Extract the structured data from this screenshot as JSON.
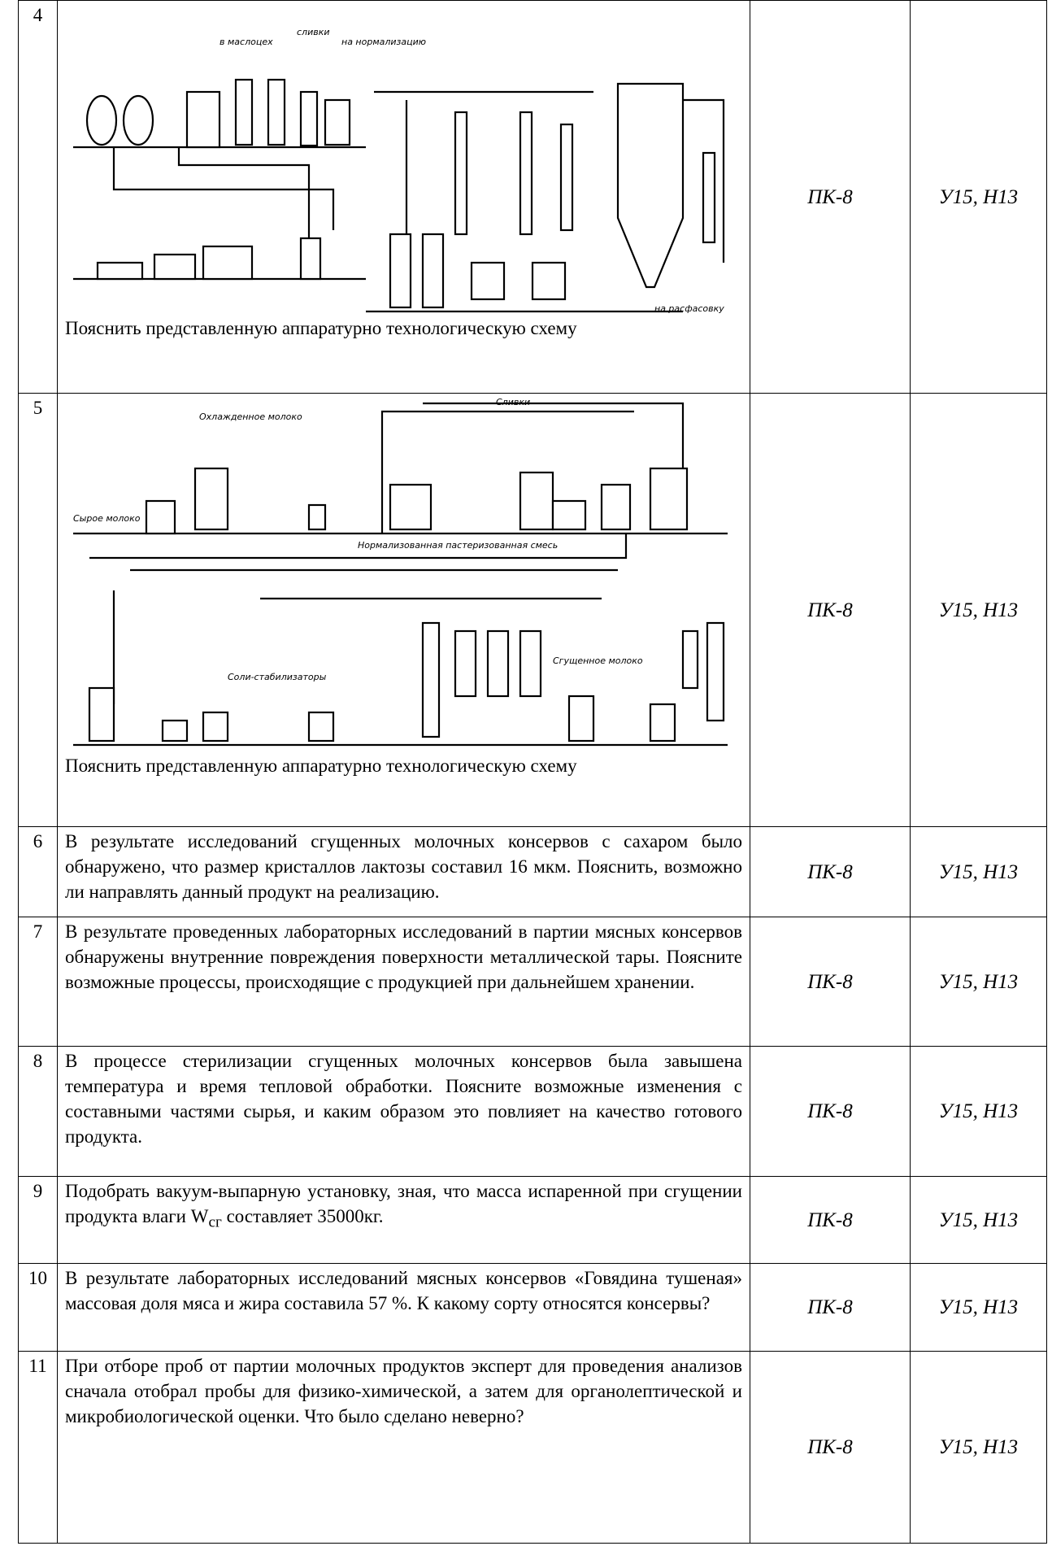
{
  "table": {
    "rows": [
      {
        "number": "4",
        "diagram_labels": [
          "в маслоцех",
          "сливки",
          "на нормализацию",
          "на расфасовку"
        ],
        "text": "Пояснить представленную аппаратурно технологическую схему",
        "competence": "ПК-8",
        "indicators": "У15, Н13"
      },
      {
        "number": "5",
        "diagram_labels": [
          "Охлажденное молоко",
          "Сливки",
          "Сырое молоко",
          "Нормализованная пастеризованная смесь",
          "Соли-стабилизаторы",
          "Сгущенное молоко"
        ],
        "text": "Пояснить представленную аппаратурно технологическую схему",
        "competence": "ПК-8",
        "indicators": "У15, Н13"
      },
      {
        "number": "6",
        "text": "В результате исследований сгущенных молочных консервов с сахаром было обнаружено, что размер кристаллов лактозы составил 16 мкм. Пояснить, возможно ли направлять данный продукт на реализацию.",
        "competence": "ПК-8",
        "indicators": "У15, Н13"
      },
      {
        "number": "7",
        "text": "В результате проведенных лабораторных исследований в партии мясных консервов обнаружены внутренние повреждения поверхности металлической тары. Поясните возможные процессы, происходящие с продукцией при дальнейшем хранении.",
        "competence": "ПК-8",
        "indicators": "У15, Н13"
      },
      {
        "number": "8",
        "text": "В процессе стерилизации сгущенных молочных консервов была завышена температура и время тепловой обработки. Поясните возможные изменения с составными частями сырья, и каким образом это повлияет на качество готового продукта.",
        "competence": "ПК-8",
        "indicators": "У15, Н13"
      },
      {
        "number": "9",
        "text_parts": [
          "Подобрать вакуум-выпарную установку, зная, что масса испаренной при сгущении продукта влаги W",
          "сг",
          " составляет 35000кг."
        ],
        "competence": "ПК-8",
        "indicators": "У15, Н13"
      },
      {
        "number": "10",
        "text": "В результате лабораторных исследований мясных консервов «Говядина тушеная» массовая доля мяса и жира составила 57 %. К какому сорту относятся консервы?",
        "competence": "ПК-8",
        "indicators": "У15, Н13"
      },
      {
        "number": "11",
        "text": "При отборе проб от партии молочных продуктов эксперт для проведения анализов сначала отобрал пробы для физико-химической, а затем для органолептической и микробиологической оценки. Что было сделано неверно?",
        "competence": "ПК-8",
        "indicators": "У15, Н13"
      }
    ]
  }
}
